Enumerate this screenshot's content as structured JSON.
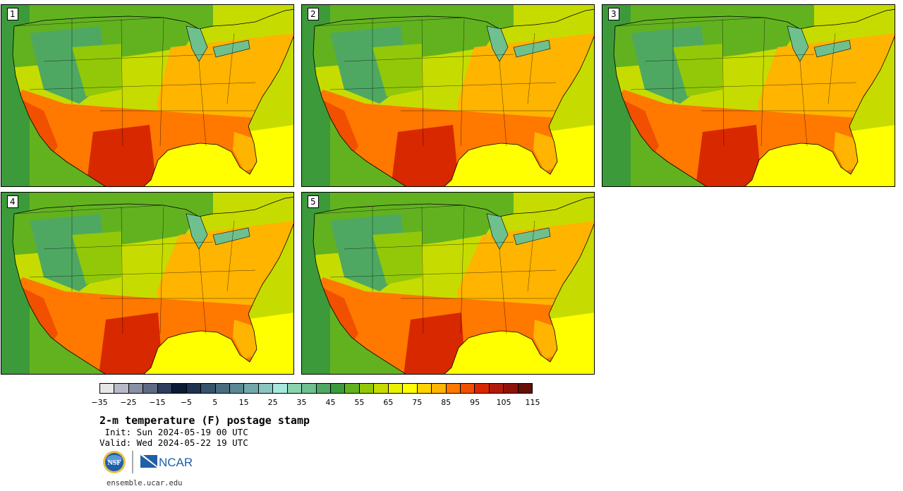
{
  "panels": [
    {
      "label": "1"
    },
    {
      "label": "2"
    },
    {
      "label": "3"
    },
    {
      "label": "4"
    },
    {
      "label": "5"
    }
  ],
  "colorbar": {
    "colors": [
      "#e6e6e6",
      "#b7bac6",
      "#8890a4",
      "#5f6a82",
      "#2f3d5c",
      "#0b1b35",
      "#1f3250",
      "#36526c",
      "#4b6c80",
      "#5a8894",
      "#72a8ac",
      "#8cc4c0",
      "#a8e8dc",
      "#8cd2b0",
      "#6ec08e",
      "#4ea862",
      "#3c9a3a",
      "#62b220",
      "#92c808",
      "#c6dc00",
      "#eaf000",
      "#ffff00",
      "#ffd200",
      "#ffb400",
      "#ff7800",
      "#f05000",
      "#d82800",
      "#b01c0c",
      "#8c1408",
      "#641006"
    ],
    "tick_labels": [
      "−35",
      "−25",
      "−15",
      "−5",
      "5",
      "15",
      "25",
      "35",
      "45",
      "55",
      "65",
      "75",
      "85",
      "95",
      "105",
      "115"
    ]
  },
  "title": "2-m temperature (F) postage stamp",
  "init": " Init: Sun 2024-05-19 00 UTC",
  "valid": "Valid: Wed 2024-05-22 19 UTC",
  "logos": {
    "nsf": "NSF",
    "ncar": "NCAR"
  },
  "site": "ensemble.ucar.edu",
  "map_colors": {
    "ocean_w": "#3c9a3a",
    "ocean_w2": "#62b220",
    "ocean_e": "#c6dc00",
    "gulf": "#ffff00",
    "north": "#62b220",
    "rockies": "#4ea862",
    "plains": "#92c808",
    "midwest": "#c6dc00",
    "east": "#ffb400",
    "south": "#ff7800",
    "texas": "#d82800",
    "desert": "#f05000",
    "lakes": "#6ec08e",
    "border": "#000000"
  }
}
